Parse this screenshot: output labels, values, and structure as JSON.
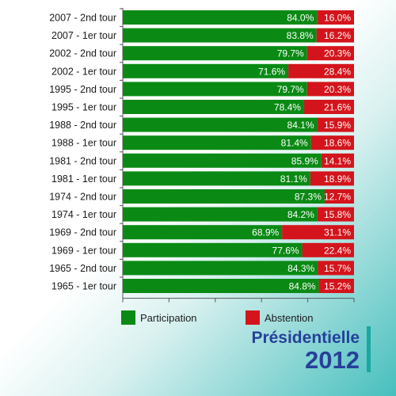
{
  "chart_data": {
    "type": "bar",
    "orientation": "horizontal",
    "stacked": true,
    "percent_format": "0.0%",
    "categories": [
      "2007 - 2nd tour",
      "2007 - 1er tour",
      "2002 - 2nd tour",
      "2002 - 1er tour",
      "1995 - 2nd tour",
      "1995 - 1er tour",
      "1988 - 2nd tour",
      "1988 - 1er tour",
      "1981 - 2nd tour",
      "1981 - 1er tour",
      "1974 - 2nd tour",
      "1974 - 1er tour",
      "1969 - 2nd tour",
      "1969 - 1er tour",
      "1965 - 2nd tour",
      "1965 - 1er tour"
    ],
    "series": [
      {
        "name": "Participation",
        "color": "#0a8a14",
        "values": [
          84.0,
          83.8,
          79.7,
          71.6,
          79.7,
          78.4,
          84.1,
          81.4,
          85.9,
          81.1,
          87.3,
          84.2,
          68.9,
          77.6,
          84.3,
          84.8
        ]
      },
      {
        "name": "Abstention",
        "color": "#d4141c",
        "values": [
          16.0,
          16.2,
          20.3,
          28.4,
          20.3,
          21.6,
          15.9,
          18.6,
          14.1,
          18.9,
          12.7,
          15.8,
          31.1,
          22.4,
          15.7,
          15.2
        ]
      }
    ],
    "xlim": [
      0,
      100
    ],
    "legend_position": "bottom"
  },
  "branding": {
    "line1": "Présidentielle",
    "line2": "2012"
  }
}
